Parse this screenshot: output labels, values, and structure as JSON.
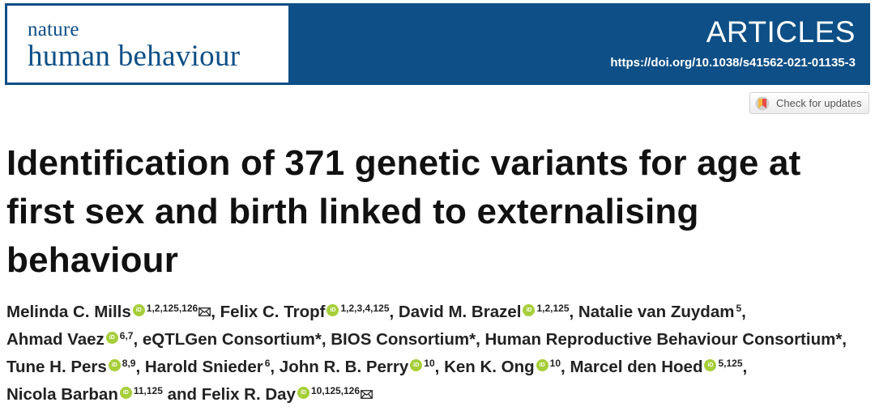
{
  "journal": {
    "name_line1": "nature",
    "name_line2": "human behaviour",
    "section": "ARTICLES",
    "doi": "https://doi.org/10.1038/s41562-021-01135-3"
  },
  "update_button": {
    "label": "Check for updates"
  },
  "article": {
    "title": "Identification of 371 genetic variants for age at first sex and birth linked to externalising behaviour"
  },
  "authors": [
    {
      "name": "Melinda C. Mills",
      "orcid": true,
      "aff": "1,2,125,126",
      "corresponding": true,
      "sep": ", "
    },
    {
      "name": "Felix C. Tropf",
      "orcid": true,
      "aff": "1,2,3,4,125",
      "corresponding": false,
      "sep": ", "
    },
    {
      "name": "David M. Brazel",
      "orcid": true,
      "aff": "1,2,125",
      "corresponding": false,
      "sep": ", "
    },
    {
      "name": "Natalie van Zuydam",
      "orcid": false,
      "aff": "5",
      "corresponding": false,
      "sep": ", "
    },
    {
      "name": "Ahmad Vaez",
      "orcid": true,
      "aff": "6,7",
      "corresponding": false,
      "sep": ", "
    },
    {
      "name": "eQTLGen Consortium*",
      "orcid": false,
      "aff": "",
      "corresponding": false,
      "sep": ", "
    },
    {
      "name": "BIOS Consortium*",
      "orcid": false,
      "aff": "",
      "corresponding": false,
      "sep": ", "
    },
    {
      "name": "Human Reproductive Behaviour Consortium*",
      "orcid": false,
      "aff": "",
      "corresponding": false,
      "sep": ", "
    },
    {
      "name": "Tune H. Pers",
      "orcid": true,
      "aff": "8,9",
      "corresponding": false,
      "sep": ", "
    },
    {
      "name": "Harold Snieder",
      "orcid": false,
      "aff": "6",
      "corresponding": false,
      "sep": ", "
    },
    {
      "name": "John R. B. Perry",
      "orcid": true,
      "aff": "10",
      "corresponding": false,
      "sep": ", "
    },
    {
      "name": "Ken K. Ong",
      "orcid": true,
      "aff": "10",
      "corresponding": false,
      "sep": ", "
    },
    {
      "name": "Marcel den Hoed",
      "orcid": true,
      "aff": "5,125",
      "corresponding": false,
      "sep": ", "
    },
    {
      "name": "Nicola Barban",
      "orcid": true,
      "aff": "11,125",
      "corresponding": false,
      "sep": " and "
    },
    {
      "name": "Felix R. Day",
      "orcid": true,
      "aff": "10,125,126",
      "corresponding": true,
      "sep": ""
    }
  ],
  "colors": {
    "header_bg": "#0d4f86",
    "orcid_green": "#a6ce39",
    "title_text": "#111111"
  },
  "icons": {
    "orcid": "orcid-icon",
    "mail": "mail-icon",
    "updates": "crossmark-icon"
  }
}
